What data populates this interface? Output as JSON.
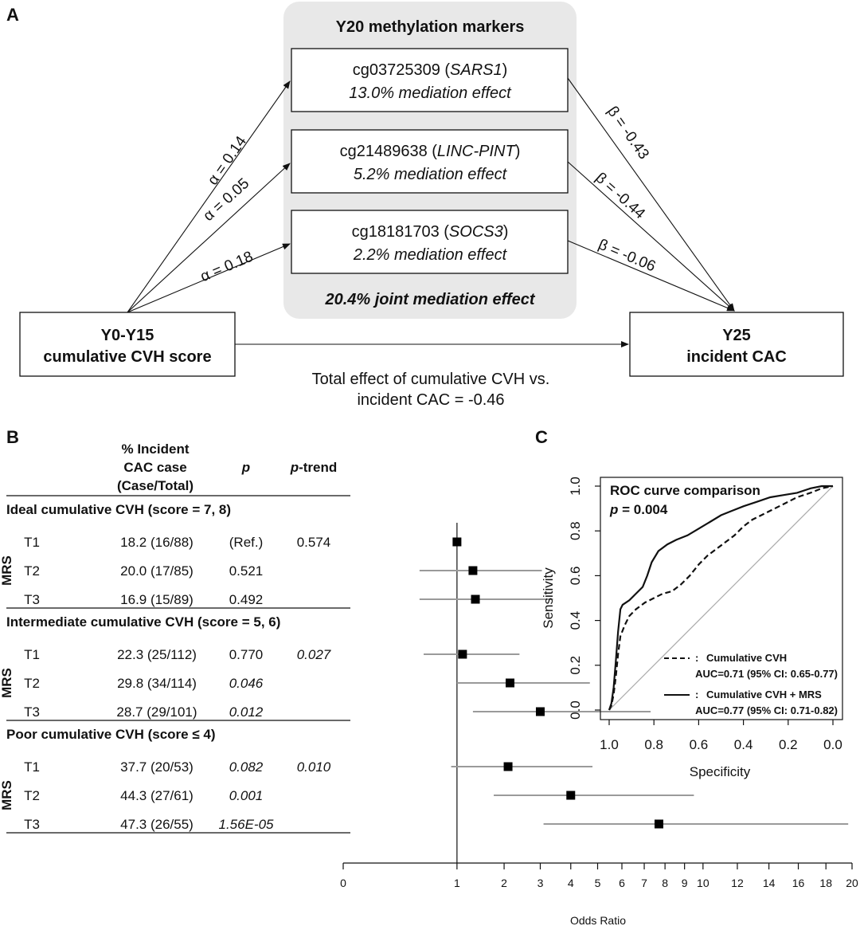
{
  "panelA": {
    "letter": "A",
    "group_title": "Y20 methylation markers",
    "markers": [
      {
        "cpg": "cg03725309",
        "gene": "SARS1",
        "effect": "13.0% mediation effect",
        "alpha": "α = 0.14",
        "beta": "β = -0.43"
      },
      {
        "cpg": "cg21489638",
        "gene": "LINC-PINT",
        "effect": "5.2% mediation effect",
        "alpha": "α = 0.05",
        "beta": "β = -0.44"
      },
      {
        "cpg": "cg18181703",
        "gene": "SOCS3",
        "effect": "2.2% mediation effect",
        "alpha": "α = 0.18",
        "beta": "β = -0.06"
      }
    ],
    "joint_effect": "20.4% joint mediation effect",
    "exposure": [
      "Y0-Y15",
      "cumulative CVH score"
    ],
    "outcome": [
      "Y25",
      "incident CAC"
    ],
    "total_effect": [
      "Total effect of cumulative CVH vs.",
      "incident CAC = -0.46"
    ]
  },
  "panelB": {
    "letter": "B",
    "col_pct": [
      "% Incident",
      "CAC case",
      "(Case/Total)"
    ],
    "col_p": "p",
    "col_ptrend_italic": "p",
    "col_ptrend_rest": "-trend",
    "mrs_label": "MRS",
    "groups": [
      {
        "title": "Ideal cumulative CVH (score = 7, 8)",
        "rows": [
          {
            "tertile": "T1",
            "pct": "18.2 (16/88)",
            "p": "(Ref.)",
            "p_italic": false,
            "ptrend": "0.574",
            "ptrend_italic": false
          },
          {
            "tertile": "T2",
            "pct": "20.0 (17/85)",
            "p": "0.521",
            "p_italic": false,
            "ptrend": "",
            "ptrend_italic": false
          },
          {
            "tertile": "T3",
            "pct": "16.9 (15/89)",
            "p": "0.492",
            "p_italic": false,
            "ptrend": "",
            "ptrend_italic": false
          }
        ]
      },
      {
        "title": "Intermediate cumulative CVH (score = 5, 6)",
        "rows": [
          {
            "tertile": "T1",
            "pct": "22.3 (25/112)",
            "p": "0.770",
            "p_italic": false,
            "ptrend": "0.027",
            "ptrend_italic": true
          },
          {
            "tertile": "T2",
            "pct": "29.8 (34/114)",
            "p": "0.046",
            "p_italic": true,
            "ptrend": "",
            "ptrend_italic": false
          },
          {
            "tertile": "T3",
            "pct": "28.7 (29/101)",
            "p": "0.012",
            "p_italic": true,
            "ptrend": "",
            "ptrend_italic": false
          }
        ]
      },
      {
        "title": "Poor cumulative CVH (score ≤ 4)",
        "rows": [
          {
            "tertile": "T1",
            "pct": "37.7 (20/53)",
            "p": "0.082",
            "p_italic": true,
            "ptrend": "0.010",
            "ptrend_italic": true
          },
          {
            "tertile": "T2",
            "pct": "44.3 (27/61)",
            "p": "0.001",
            "p_italic": true,
            "ptrend": "",
            "ptrend_italic": false
          },
          {
            "tertile": "T3",
            "pct": "47.3 (26/55)",
            "p": "1.56E-05",
            "p_italic": true,
            "ptrend": "",
            "ptrend_italic": false
          }
        ]
      }
    ]
  },
  "panelC": {
    "letter": "C",
    "legend_title": "ROC curve comparison",
    "p_italic": "p",
    "p_rest": " = 0.004",
    "legend_entries": [
      {
        "label": "Cumulative CVH",
        "auc": "AUC=0.71 (95% CI: 0.65-0.77)",
        "style": "dashed"
      },
      {
        "label": "Cumulative CVH + MRS",
        "auc": "AUC=0.77 (95% CI: 0.71-0.82)",
        "style": "solid"
      }
    ],
    "legend_colon": ":"
  },
  "chart_data": [
    {
      "type": "scatter",
      "subtype": "forest-plot",
      "xlabel": "Odds Ratio",
      "xlim": [
        0,
        20
      ],
      "scale": "sqrt",
      "reference_line": 1,
      "xticks": [
        0,
        1,
        2,
        3,
        4,
        5,
        6,
        7,
        8,
        9,
        10,
        12,
        14,
        16,
        18,
        20
      ],
      "points": [
        {
          "group": "Ideal",
          "tertile": "T1",
          "or": 1.0,
          "lo": 1.0,
          "hi": 1.0
        },
        {
          "group": "Ideal",
          "tertile": "T2",
          "or": 1.3,
          "lo": 0.45,
          "hi": 3.05
        },
        {
          "group": "Ideal",
          "tertile": "T3",
          "or": 1.35,
          "lo": 0.45,
          "hi": 3.4
        },
        {
          "group": "Intermediate",
          "tertile": "T1",
          "or": 1.1,
          "lo": 0.5,
          "hi": 2.4
        },
        {
          "group": "Intermediate",
          "tertile": "T2",
          "or": 2.15,
          "lo": 1.0,
          "hi": 4.7
        },
        {
          "group": "Intermediate",
          "tertile": "T3",
          "or": 3.0,
          "lo": 1.3,
          "hi": 7.3
        },
        {
          "group": "Poor",
          "tertile": "T1",
          "or": 2.1,
          "lo": 0.9,
          "hi": 4.8
        },
        {
          "group": "Poor",
          "tertile": "T2",
          "or": 4.0,
          "lo": 1.75,
          "hi": 9.5
        },
        {
          "group": "Poor",
          "tertile": "T3",
          "or": 7.7,
          "lo": 3.1,
          "hi": 19.7
        }
      ]
    },
    {
      "type": "line",
      "subtype": "roc",
      "xlabel": "Specificity",
      "ylabel": "Sensitivity",
      "xlim": [
        1.0,
        0.0
      ],
      "ylim": [
        0.0,
        1.0
      ],
      "xticks": [
        "1.0",
        "0.8",
        "0.6",
        "0.4",
        "0.2",
        "0.0"
      ],
      "yticks": [
        "0.0",
        "0.2",
        "0.4",
        "0.6",
        "0.8",
        "1.0"
      ],
      "series": [
        {
          "name": "Cumulative CVH",
          "style": "dashed",
          "points": [
            [
              1.0,
              0.0
            ],
            [
              0.99,
              0.02
            ],
            [
              0.98,
              0.07
            ],
            [
              0.97,
              0.15
            ],
            [
              0.96,
              0.25
            ],
            [
              0.95,
              0.33
            ],
            [
              0.93,
              0.38
            ],
            [
              0.91,
              0.42
            ],
            [
              0.88,
              0.45
            ],
            [
              0.84,
              0.48
            ],
            [
              0.8,
              0.5
            ],
            [
              0.76,
              0.52
            ],
            [
              0.72,
              0.53
            ],
            [
              0.68,
              0.56
            ],
            [
              0.64,
              0.6
            ],
            [
              0.6,
              0.65
            ],
            [
              0.56,
              0.69
            ],
            [
              0.52,
              0.72
            ],
            [
              0.48,
              0.75
            ],
            [
              0.44,
              0.78
            ],
            [
              0.4,
              0.82
            ],
            [
              0.36,
              0.85
            ],
            [
              0.32,
              0.87
            ],
            [
              0.28,
              0.89
            ],
            [
              0.22,
              0.92
            ],
            [
              0.16,
              0.95
            ],
            [
              0.1,
              0.97
            ],
            [
              0.05,
              0.99
            ],
            [
              0.0,
              1.0
            ]
          ]
        },
        {
          "name": "Cumulative CVH + MRS",
          "style": "solid",
          "points": [
            [
              1.0,
              0.0
            ],
            [
              0.99,
              0.03
            ],
            [
              0.98,
              0.1
            ],
            [
              0.97,
              0.22
            ],
            [
              0.96,
              0.35
            ],
            [
              0.95,
              0.45
            ],
            [
              0.94,
              0.47
            ],
            [
              0.91,
              0.49
            ],
            [
              0.88,
              0.52
            ],
            [
              0.85,
              0.55
            ],
            [
              0.83,
              0.6
            ],
            [
              0.81,
              0.66
            ],
            [
              0.78,
              0.71
            ],
            [
              0.74,
              0.74
            ],
            [
              0.7,
              0.76
            ],
            [
              0.65,
              0.78
            ],
            [
              0.6,
              0.81
            ],
            [
              0.55,
              0.84
            ],
            [
              0.5,
              0.87
            ],
            [
              0.45,
              0.89
            ],
            [
              0.4,
              0.91
            ],
            [
              0.34,
              0.93
            ],
            [
              0.28,
              0.95
            ],
            [
              0.22,
              0.96
            ],
            [
              0.16,
              0.97
            ],
            [
              0.1,
              0.99
            ],
            [
              0.05,
              1.0
            ],
            [
              0.0,
              1.0
            ]
          ]
        }
      ]
    }
  ]
}
